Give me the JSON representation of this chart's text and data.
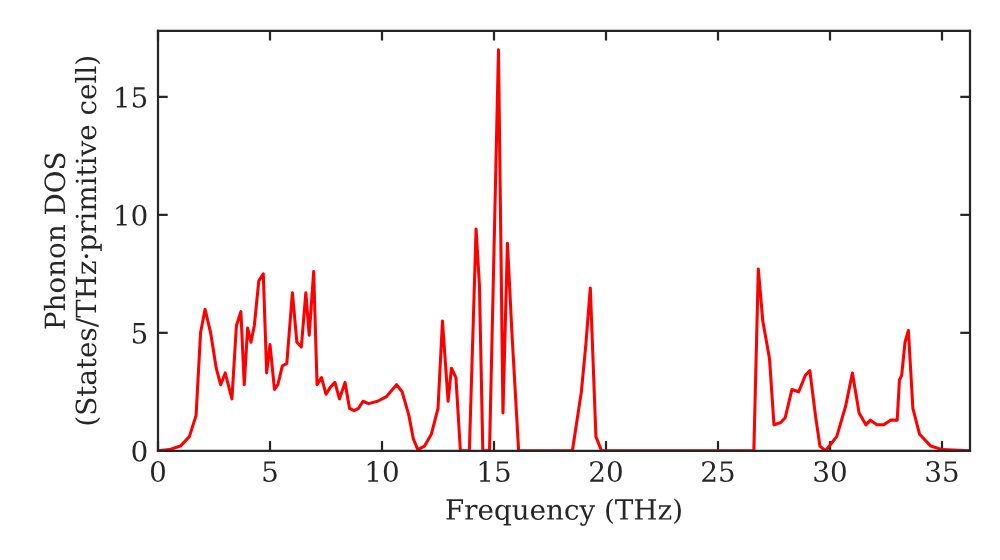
{
  "chart_data": {
    "type": "line",
    "xlabel": "Frequency (THz)",
    "ylabel": "Phonon DOS\n(States/THz·primitive cell)",
    "xlim": [
      0,
      36.25
    ],
    "ylim": [
      0,
      17.8
    ],
    "xticks": [
      0,
      5,
      10,
      15,
      20,
      25,
      30,
      35
    ],
    "yticks": [
      0,
      5,
      10,
      15
    ],
    "grid": false,
    "legend": false,
    "marker": "none",
    "line_style": "solid",
    "series": [
      {
        "color": "#ff0000",
        "x": [
          0,
          0.5,
          1,
          1.4,
          1.7,
          1.9,
          2.1,
          2.35,
          2.6,
          2.8,
          3.0,
          3.3,
          3.5,
          3.7,
          3.85,
          4.0,
          4.15,
          4.3,
          4.5,
          4.7,
          4.85,
          5.0,
          5.2,
          5.35,
          5.55,
          5.75,
          6.0,
          6.2,
          6.4,
          6.6,
          6.75,
          6.95,
          7.1,
          7.3,
          7.5,
          7.7,
          7.9,
          8.1,
          8.35,
          8.55,
          8.75,
          8.95,
          9.15,
          9.4,
          9.8,
          10.2,
          10.65,
          10.9,
          11.2,
          11.4,
          11.6,
          11.9,
          12.2,
          12.5,
          12.7,
          12.95,
          13.1,
          13.3,
          13.5,
          13.9,
          14.2,
          14.35,
          14.5,
          14.8,
          15.2,
          15.4,
          15.6,
          15.8,
          16.1,
          18.5,
          18.9,
          19.1,
          19.3,
          19.55,
          19.8,
          26.6,
          26.8,
          27.0,
          27.3,
          27.5,
          27.8,
          28.0,
          28.3,
          28.6,
          28.9,
          29.1,
          29.35,
          29.55,
          29.8,
          30.3,
          30.7,
          31.0,
          31.3,
          31.6,
          31.8,
          32.1,
          32.4,
          32.7,
          33.0,
          33.1,
          33.2,
          33.35,
          33.5,
          33.7,
          34.0,
          34.5,
          35.0,
          36.25
        ],
        "values": [
          0,
          0.05,
          0.2,
          0.6,
          1.5,
          5.0,
          6.0,
          5.0,
          3.5,
          2.8,
          3.3,
          2.2,
          5.3,
          5.9,
          2.8,
          5.2,
          4.6,
          5.3,
          7.2,
          7.5,
          3.3,
          4.5,
          2.6,
          2.8,
          3.6,
          3.7,
          6.7,
          4.6,
          4.4,
          6.7,
          4.9,
          7.6,
          2.8,
          3.1,
          2.4,
          2.7,
          2.9,
          2.2,
          2.9,
          1.8,
          1.7,
          1.8,
          2.1,
          2.0,
          2.1,
          2.3,
          2.8,
          2.5,
          1.5,
          0.5,
          0.05,
          0.2,
          0.7,
          1.8,
          5.5,
          2.1,
          3.5,
          3.1,
          0,
          0,
          9.4,
          7.0,
          0,
          0,
          17.0,
          1.6,
          8.8,
          5.0,
          0,
          0,
          2.5,
          4.5,
          6.9,
          0.6,
          0,
          0,
          7.7,
          5.5,
          3.9,
          1.1,
          1.2,
          1.4,
          2.6,
          2.5,
          3.2,
          3.4,
          1.5,
          0.2,
          0,
          0.6,
          1.9,
          3.3,
          1.6,
          1.1,
          1.3,
          1.1,
          1.1,
          1.3,
          1.3,
          3.0,
          3.2,
          4.6,
          5.1,
          1.8,
          0.7,
          0.2,
          0.05,
          0
        ]
      }
    ]
  }
}
